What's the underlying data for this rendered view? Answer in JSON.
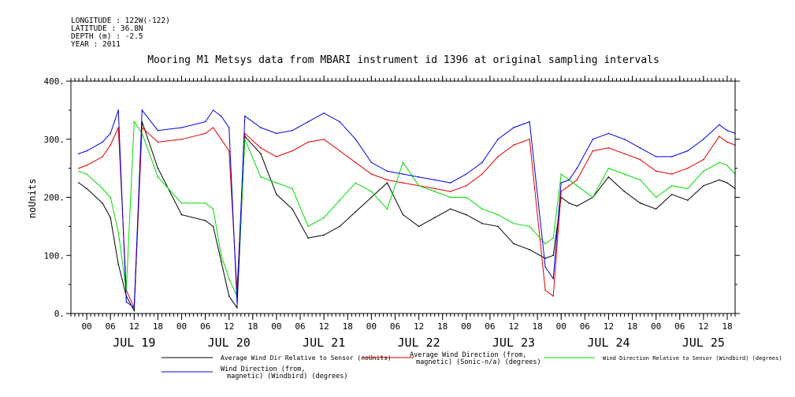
{
  "meta": {
    "longitude": "LONGITUDE : 122W(-122)",
    "latitude": "LATITUDE : 36.8N",
    "depth": "DEPTH (m) : -2.5",
    "year": "YEAR : 2011"
  },
  "chart_data": {
    "type": "line",
    "title": "Mooring M1 Metsys data from MBARI instrument id 1396 at original sampling intervals",
    "ylabel": "noUnits",
    "ylim": [
      0,
      400
    ],
    "yticks": [
      0,
      100,
      200,
      300,
      400
    ],
    "ytick_labels": [
      "0.",
      "100.",
      "200.",
      "300.",
      "400."
    ],
    "xlim_hours_from_jul19_00": [
      -4,
      164
    ],
    "x_tick_hours": [
      "00",
      "06",
      "12",
      "18",
      "00",
      "06",
      "12",
      "18",
      "00",
      "06",
      "12",
      "18",
      "00",
      "06",
      "12",
      "18",
      "00",
      "06",
      "12",
      "18",
      "00",
      "06",
      "12",
      "18",
      "00",
      "06",
      "12",
      "18"
    ],
    "x_day_labels": [
      "JUL 19",
      "JUL 20",
      "JUL 21",
      "JUL 22",
      "JUL 23",
      "JUL 24",
      "JUL 25"
    ],
    "grid": false,
    "legend_position": "bottom",
    "colors": {
      "black": "#000000",
      "red": "#e00000",
      "green": "#00dd00",
      "blue": "#0000e0"
    },
    "series": [
      {
        "name": "Average Wind Dir Relative to Sensor (noUnits)",
        "color": "#000000",
        "x": [
          -2,
          0,
          4,
          6,
          8,
          10,
          12,
          14,
          18,
          24,
          30,
          32,
          34,
          36,
          38,
          40,
          44,
          48,
          52,
          56,
          60,
          64,
          68,
          72,
          76,
          80,
          84,
          88,
          92,
          96,
          100,
          104,
          108,
          112,
          116,
          118,
          120,
          122,
          124,
          128,
          132,
          136,
          140,
          144,
          148,
          152,
          156,
          160,
          162,
          164
        ],
        "y": [
          225,
          215,
          190,
          165,
          85,
          30,
          5,
          330,
          250,
          170,
          160,
          150,
          90,
          30,
          10,
          305,
          275,
          205,
          180,
          130,
          135,
          150,
          175,
          200,
          225,
          170,
          150,
          165,
          180,
          170,
          155,
          150,
          120,
          110,
          95,
          100,
          200,
          190,
          185,
          200,
          235,
          210,
          190,
          180,
          205,
          195,
          220,
          230,
          225,
          215
        ]
      },
      {
        "name": "Average Wind Direction (from, magnetic) (Sonic-n/a) (degrees)",
        "color": "#e00000",
        "x": [
          -2,
          0,
          4,
          6,
          8,
          10,
          12,
          14,
          18,
          24,
          30,
          32,
          34,
          36,
          38,
          40,
          44,
          48,
          52,
          56,
          60,
          64,
          68,
          72,
          76,
          80,
          84,
          88,
          92,
          96,
          100,
          104,
          108,
          112,
          116,
          118,
          120,
          122,
          124,
          128,
          132,
          136,
          140,
          144,
          148,
          152,
          156,
          160,
          162,
          164
        ],
        "y": [
          250,
          255,
          270,
          290,
          320,
          40,
          10,
          320,
          295,
          300,
          310,
          320,
          300,
          280,
          40,
          310,
          285,
          270,
          280,
          295,
          300,
          280,
          260,
          240,
          230,
          225,
          220,
          215,
          210,
          220,
          240,
          270,
          290,
          300,
          40,
          30,
          210,
          220,
          230,
          280,
          285,
          275,
          265,
          245,
          240,
          250,
          265,
          305,
          295,
          290
        ]
      },
      {
        "name": "Wind Direction Relative to Sensor (Windbird) (degrees)",
        "color": "#00dd00",
        "x": [
          -2,
          0,
          4,
          6,
          8,
          10,
          12,
          14,
          18,
          24,
          30,
          32,
          34,
          36,
          38,
          40,
          44,
          48,
          52,
          56,
          60,
          64,
          68,
          72,
          76,
          80,
          84,
          88,
          92,
          96,
          100,
          104,
          108,
          112,
          116,
          118,
          120,
          122,
          124,
          128,
          132,
          136,
          140,
          144,
          148,
          152,
          156,
          160,
          162,
          164
        ],
        "y": [
          245,
          240,
          215,
          200,
          140,
          40,
          330,
          310,
          235,
          190,
          190,
          180,
          100,
          60,
          30,
          300,
          235,
          225,
          215,
          150,
          165,
          195,
          225,
          210,
          180,
          260,
          220,
          210,
          200,
          200,
          180,
          170,
          155,
          150,
          120,
          130,
          240,
          230,
          220,
          200,
          250,
          240,
          230,
          200,
          220,
          215,
          245,
          260,
          255,
          240
        ]
      },
      {
        "name": "Wind Direction (from, magnetic) (Windbird) (degrees)",
        "color": "#0000e0",
        "x": [
          -2,
          0,
          4,
          6,
          8,
          10,
          12,
          14,
          18,
          24,
          30,
          32,
          34,
          36,
          38,
          40,
          44,
          48,
          52,
          56,
          60,
          64,
          68,
          72,
          76,
          80,
          84,
          88,
          92,
          96,
          100,
          104,
          108,
          112,
          116,
          118,
          120,
          122,
          124,
          128,
          132,
          136,
          140,
          144,
          148,
          152,
          156,
          160,
          162,
          164
        ],
        "y": [
          275,
          280,
          295,
          310,
          350,
          20,
          10,
          350,
          315,
          320,
          330,
          350,
          340,
          320,
          20,
          340,
          320,
          310,
          315,
          330,
          345,
          330,
          300,
          260,
          245,
          240,
          235,
          230,
          225,
          240,
          260,
          300,
          320,
          330,
          80,
          60,
          225,
          230,
          250,
          300,
          310,
          300,
          285,
          270,
          270,
          280,
          300,
          325,
          315,
          310
        ]
      }
    ]
  },
  "legend": {
    "items": [
      {
        "label1": "Average Wind Dir Relative to Sensor (noUnits)",
        "label2": ""
      },
      {
        "label1": "Average Wind Direction (from,",
        "label2": "magnetic) (Sonic-n/a) (degrees)"
      },
      {
        "label1": "Wind Direction Relative to Sensor (Windbird) (degrees)",
        "label2": ""
      },
      {
        "label1": "Wind Direction (from,",
        "label2": "magnetic) (Windbird) (degrees)"
      }
    ]
  }
}
